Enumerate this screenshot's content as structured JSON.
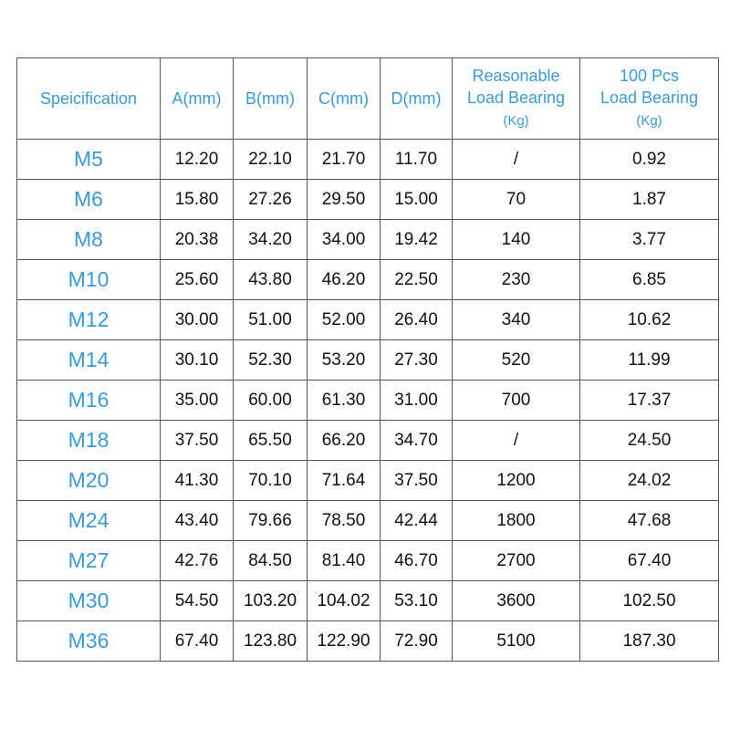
{
  "table": {
    "headers": [
      {
        "lines": [
          "Speicification"
        ]
      },
      {
        "lines": [
          "A(mm)"
        ]
      },
      {
        "lines": [
          "B(mm)"
        ]
      },
      {
        "lines": [
          "C(mm)"
        ]
      },
      {
        "lines": [
          "D(mm)"
        ]
      },
      {
        "lines": [
          "Reasonable",
          "Load Bearing"
        ],
        "unit": "(Kg)"
      },
      {
        "lines": [
          "100 Pcs",
          "Load Bearing"
        ],
        "unit": "(Kg)"
      }
    ],
    "rows": [
      [
        "M5",
        "12.20",
        "22.10",
        "21.70",
        "11.70",
        "/",
        "0.92"
      ],
      [
        "M6",
        "15.80",
        "27.26",
        "29.50",
        "15.00",
        "70",
        "1.87"
      ],
      [
        "M8",
        "20.38",
        "34.20",
        "34.00",
        "19.42",
        "140",
        "3.77"
      ],
      [
        "M10",
        "25.60",
        "43.80",
        "46.20",
        "22.50",
        "230",
        "6.85"
      ],
      [
        "M12",
        "30.00",
        "51.00",
        "52.00",
        "26.40",
        "340",
        "10.62"
      ],
      [
        "M14",
        "30.10",
        "52.30",
        "53.20",
        "27.30",
        "520",
        "11.99"
      ],
      [
        "M16",
        "35.00",
        "60.00",
        "61.30",
        "31.00",
        "700",
        "17.37"
      ],
      [
        "M18",
        "37.50",
        "65.50",
        "66.20",
        "34.70",
        "/",
        "24.50"
      ],
      [
        "M20",
        "41.30",
        "70.10",
        "71.64",
        "37.50",
        "1200",
        "24.02"
      ],
      [
        "M24",
        "43.40",
        "79.66",
        "78.50",
        "42.44",
        "1800",
        "47.68"
      ],
      [
        "M27",
        "42.76",
        "84.50",
        "81.40",
        "46.70",
        "2700",
        "67.40"
      ],
      [
        "M30",
        "54.50",
        "103.20",
        "104.02",
        "53.10",
        "3600",
        "102.50"
      ],
      [
        "M36",
        "67.40",
        "123.80",
        "122.90",
        "72.90",
        "5100",
        "187.30"
      ]
    ],
    "colors": {
      "header_text": "#3a9ad9",
      "spec_text": "#3a9ad9",
      "value_text": "#111111",
      "border": "#555555"
    }
  }
}
